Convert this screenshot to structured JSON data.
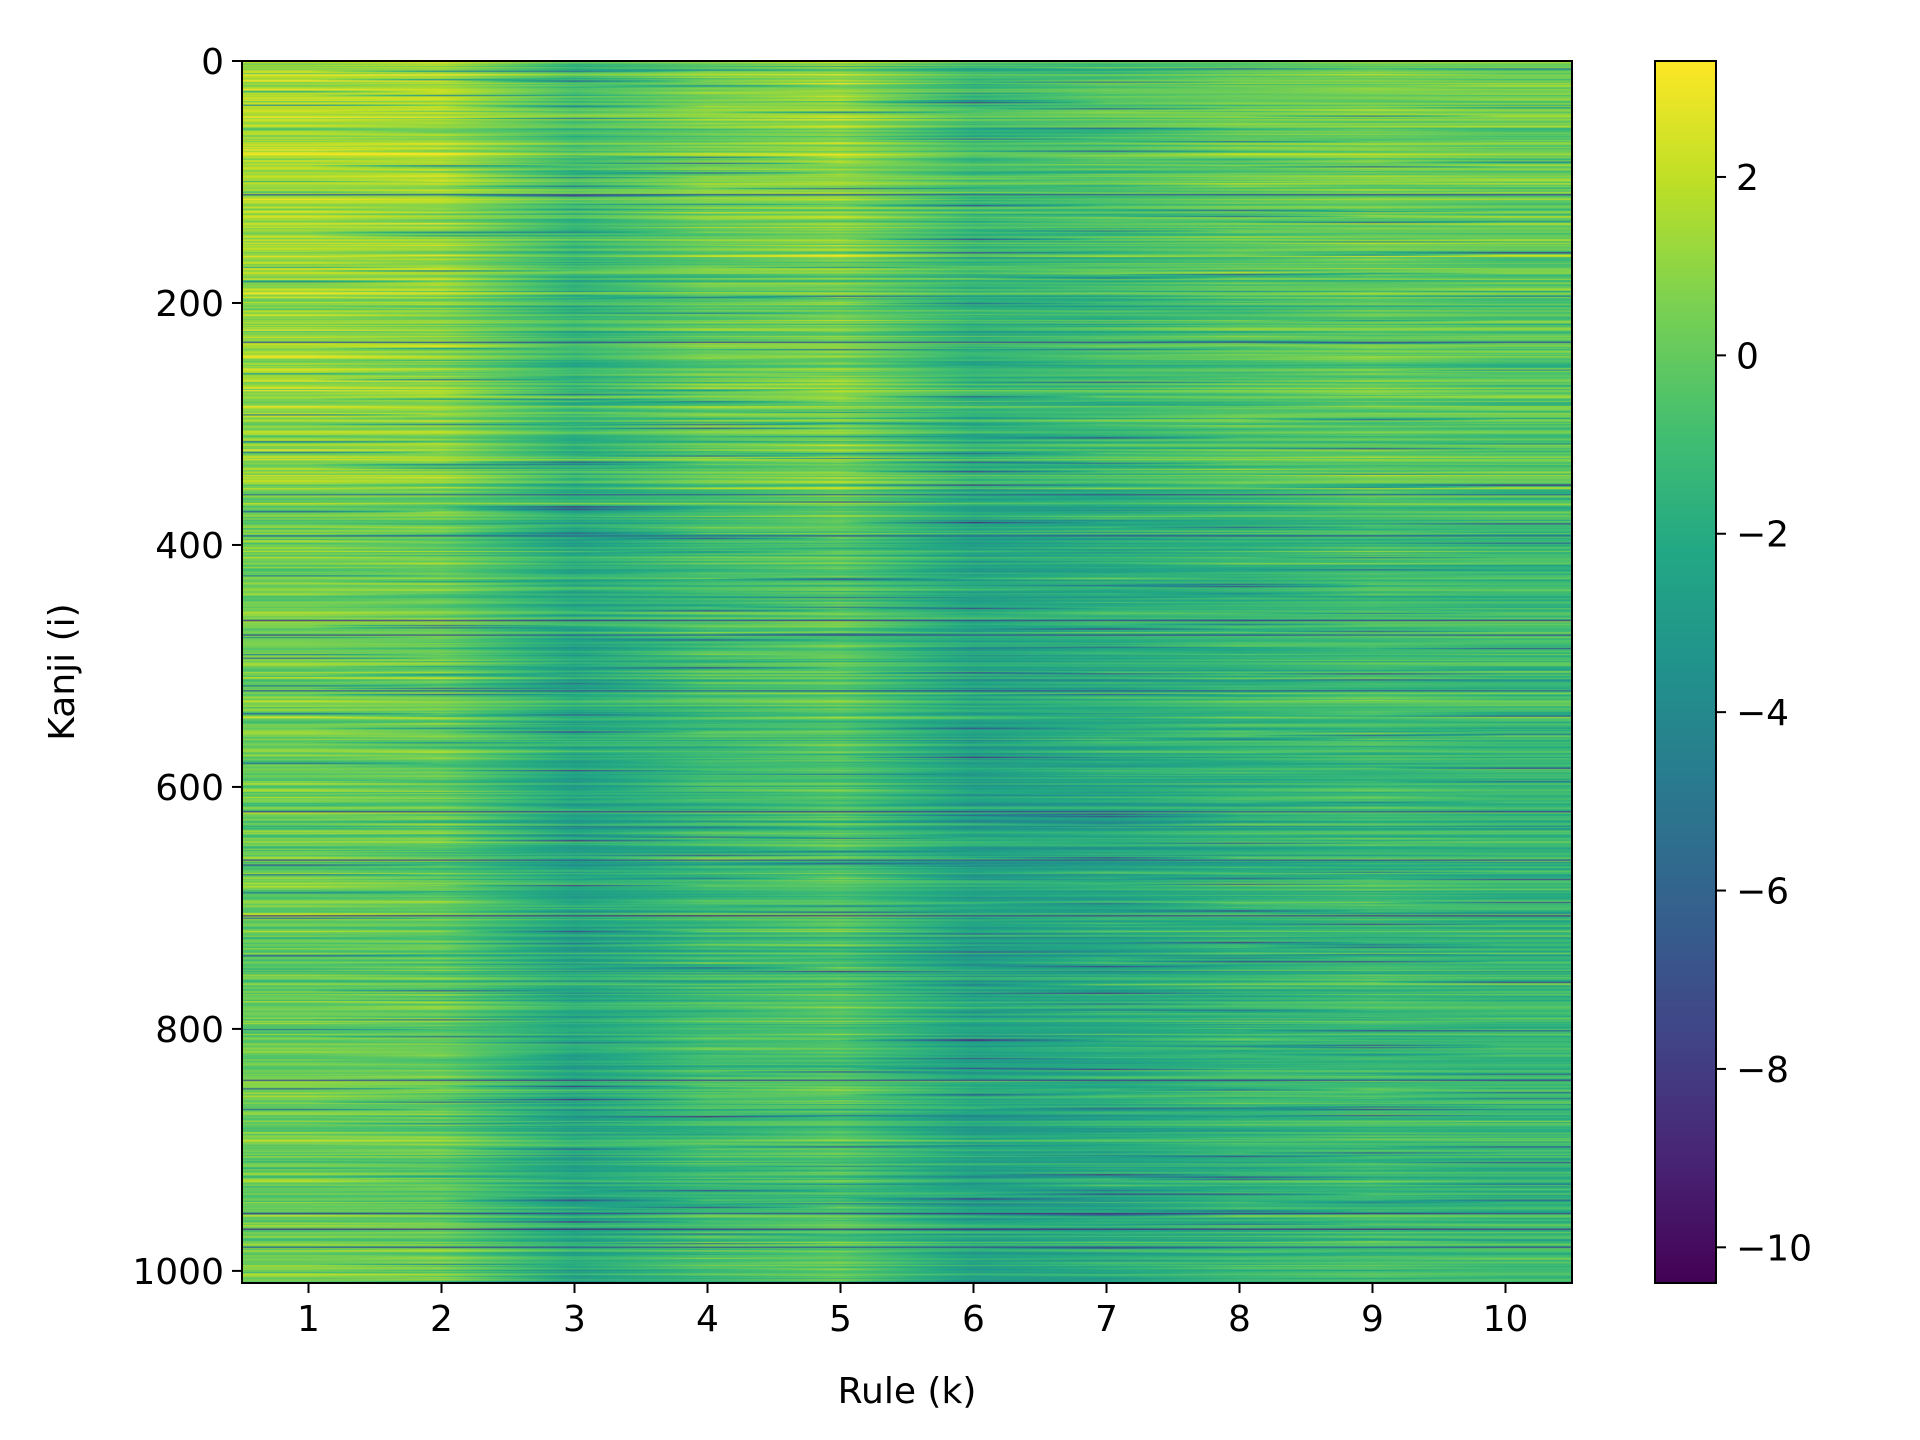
{
  "chart_data": {
    "type": "heatmap",
    "title": "",
    "xlabel": "Rule (k)",
    "ylabel": "Kanji (i)",
    "x_categories": [
      1,
      2,
      3,
      4,
      5,
      6,
      7,
      8,
      9,
      10
    ],
    "x_tick_labels": [
      "1",
      "2",
      "3",
      "4",
      "5",
      "6",
      "7",
      "8",
      "9",
      "10"
    ],
    "y_range": [
      0,
      1010
    ],
    "y_ticks": [
      0,
      200,
      400,
      600,
      800,
      1000
    ],
    "y_tick_labels": [
      "0",
      "200",
      "400",
      "600",
      "800",
      "1000"
    ],
    "y_inverted": true,
    "n_rows": 1010,
    "colormap": "viridis",
    "colorbar": {
      "range": [
        -10.4,
        3.3
      ],
      "ticks": [
        2,
        0,
        -2,
        -4,
        -6,
        -8,
        -10
      ],
      "tick_labels": [
        "2",
        "0",
        "−2",
        "−4",
        "−6",
        "−8",
        "−10"
      ]
    },
    "column_mean_values": [
      1.0,
      0.8,
      -1.4,
      -0.2,
      0.4,
      -1.6,
      -1.2,
      -0.6,
      -0.2,
      -0.4
    ],
    "row_bands": [
      {
        "rows": [
          0,
          150
        ],
        "level": 0.6
      },
      {
        "rows": [
          150,
          350
        ],
        "level": 0.2
      },
      {
        "rows": [
          350,
          560
        ],
        "level": -0.6
      },
      {
        "rows": [
          560,
          760
        ],
        "level": -0.9
      },
      {
        "rows": [
          760,
          1010
        ],
        "level": -0.8
      }
    ],
    "dark_rows": [
      {
        "row": 110,
        "value": -6.5
      },
      {
        "row": 232,
        "value": -7.0
      },
      {
        "row": 358,
        "value": -5.5
      },
      {
        "row": 392,
        "value": -6.0
      },
      {
        "row": 462,
        "value": -7.5
      },
      {
        "row": 474,
        "value": -6.5
      },
      {
        "row": 520,
        "value": -6.0
      },
      {
        "row": 620,
        "value": -7.0
      },
      {
        "row": 660,
        "value": -6.5
      },
      {
        "row": 706,
        "value": -8.0
      },
      {
        "row": 842,
        "value": -7.0
      },
      {
        "row": 952,
        "value": -7.5
      },
      {
        "row": 965,
        "value": -8.5
      },
      {
        "row": 980,
        "value": -6.5
      }
    ],
    "grid": false,
    "legend": "none"
  }
}
